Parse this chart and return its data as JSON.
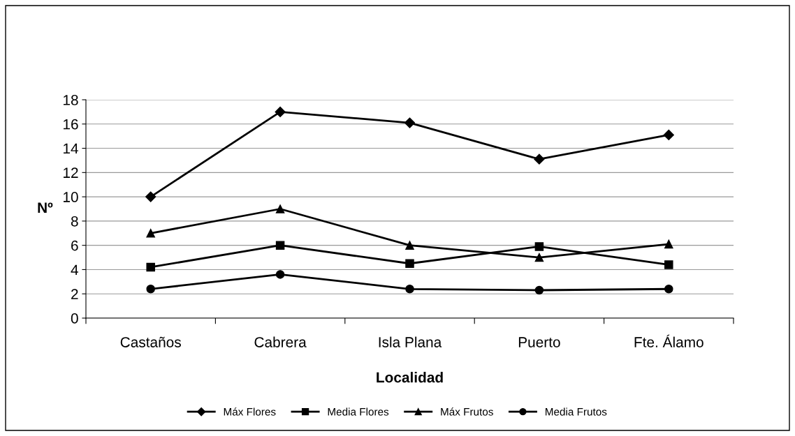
{
  "chart_data": {
    "type": "line",
    "xlabel": "Localidad",
    "ylabel": "Nº",
    "categories": [
      "Castaños",
      "Cabrera",
      "Isla Plana",
      "Puerto",
      "Fte. Álamo"
    ],
    "series": [
      {
        "name": "Máx Flores",
        "color": "#000000",
        "marker": "diamond",
        "values": [
          10,
          17,
          16.1,
          13.1,
          15.1
        ]
      },
      {
        "name": "Media Flores",
        "color": "#000000",
        "marker": "square",
        "values": [
          4.2,
          6,
          4.5,
          5.9,
          4.4
        ]
      },
      {
        "name": "Máx Frutos",
        "color": "#000000",
        "marker": "triangle",
        "values": [
          7,
          9,
          6,
          5,
          6.1
        ]
      },
      {
        "name": "Media Frutos",
        "color": "#000000",
        "marker": "circle",
        "values": [
          2.4,
          3.6,
          2.4,
          2.3,
          2.4
        ]
      }
    ],
    "ylim": [
      0,
      18
    ],
    "yticks": [
      0,
      2,
      4,
      6,
      8,
      10,
      12,
      14,
      16,
      18
    ],
    "grid": "y",
    "legend": "bottom",
    "line_style": "solid"
  }
}
